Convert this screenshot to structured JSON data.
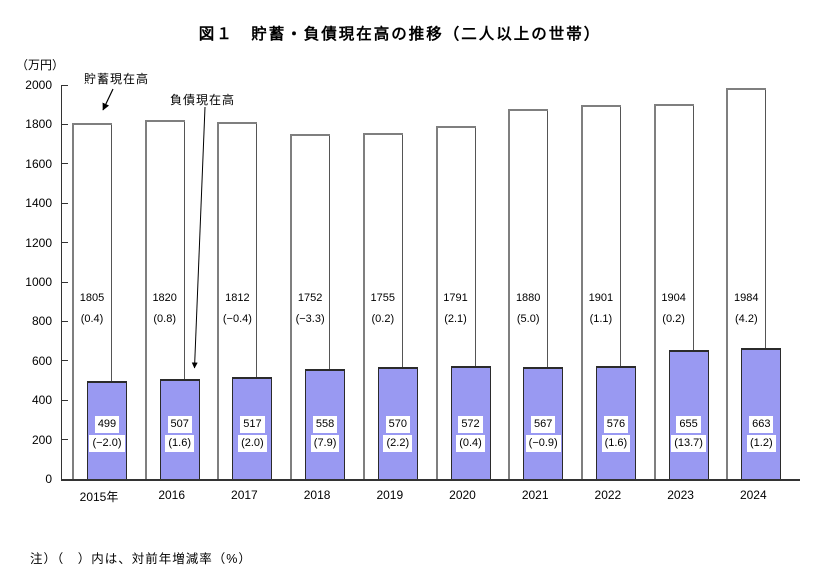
{
  "title": "図１　貯蓄・負債現在高の推移（二人以上の世帯）",
  "y_axis": {
    "unit_label": "（万円）"
  },
  "annotations": {
    "savings_label": "貯蓄現在高",
    "liabilities_label": "負債現在高"
  },
  "footnote": "注）（　）内は、対前年増減率（%）",
  "colors": {
    "liabilities_fill": "#9999f2",
    "savings_fill": "#ffffff",
    "savings_border": "#7f7f7f",
    "liabilities_border": "#2b2b2b",
    "axis": "#333333"
  },
  "chart_data": {
    "type": "bar",
    "title": "図１　貯蓄・負債現在高の推移（二人以上の世帯）",
    "ylabel": "（万円）",
    "ylim": [
      0,
      2000
    ],
    "y_ticks": [
      0,
      200,
      400,
      600,
      800,
      1000,
      1200,
      1400,
      1600,
      1800,
      2000
    ],
    "grid": false,
    "legend_position": "annotated-arrows",
    "categories": [
      "2015年",
      "2016",
      "2017",
      "2018",
      "2019",
      "2020",
      "2021",
      "2022",
      "2023",
      "2024"
    ],
    "series": [
      {
        "name": "貯蓄現在高",
        "values": [
          1805,
          1820,
          1812,
          1752,
          1755,
          1791,
          1880,
          1901,
          1904,
          1984
        ],
        "change_rates": [
          "0.4",
          "0.8",
          "−0.4",
          "−3.3",
          "0.2",
          "2.1",
          "5.0",
          "1.1",
          "0.2",
          "4.2"
        ]
      },
      {
        "name": "負債現在高",
        "values": [
          499,
          507,
          517,
          558,
          570,
          572,
          567,
          576,
          655,
          663
        ],
        "change_rates": [
          "−2.0",
          "1.6",
          "2.0",
          "7.9",
          "2.2",
          "0.4",
          "−0.9",
          "1.6",
          "13.7",
          "1.2"
        ]
      }
    ],
    "note": "注）（　）内は、対前年増減率（%）"
  }
}
